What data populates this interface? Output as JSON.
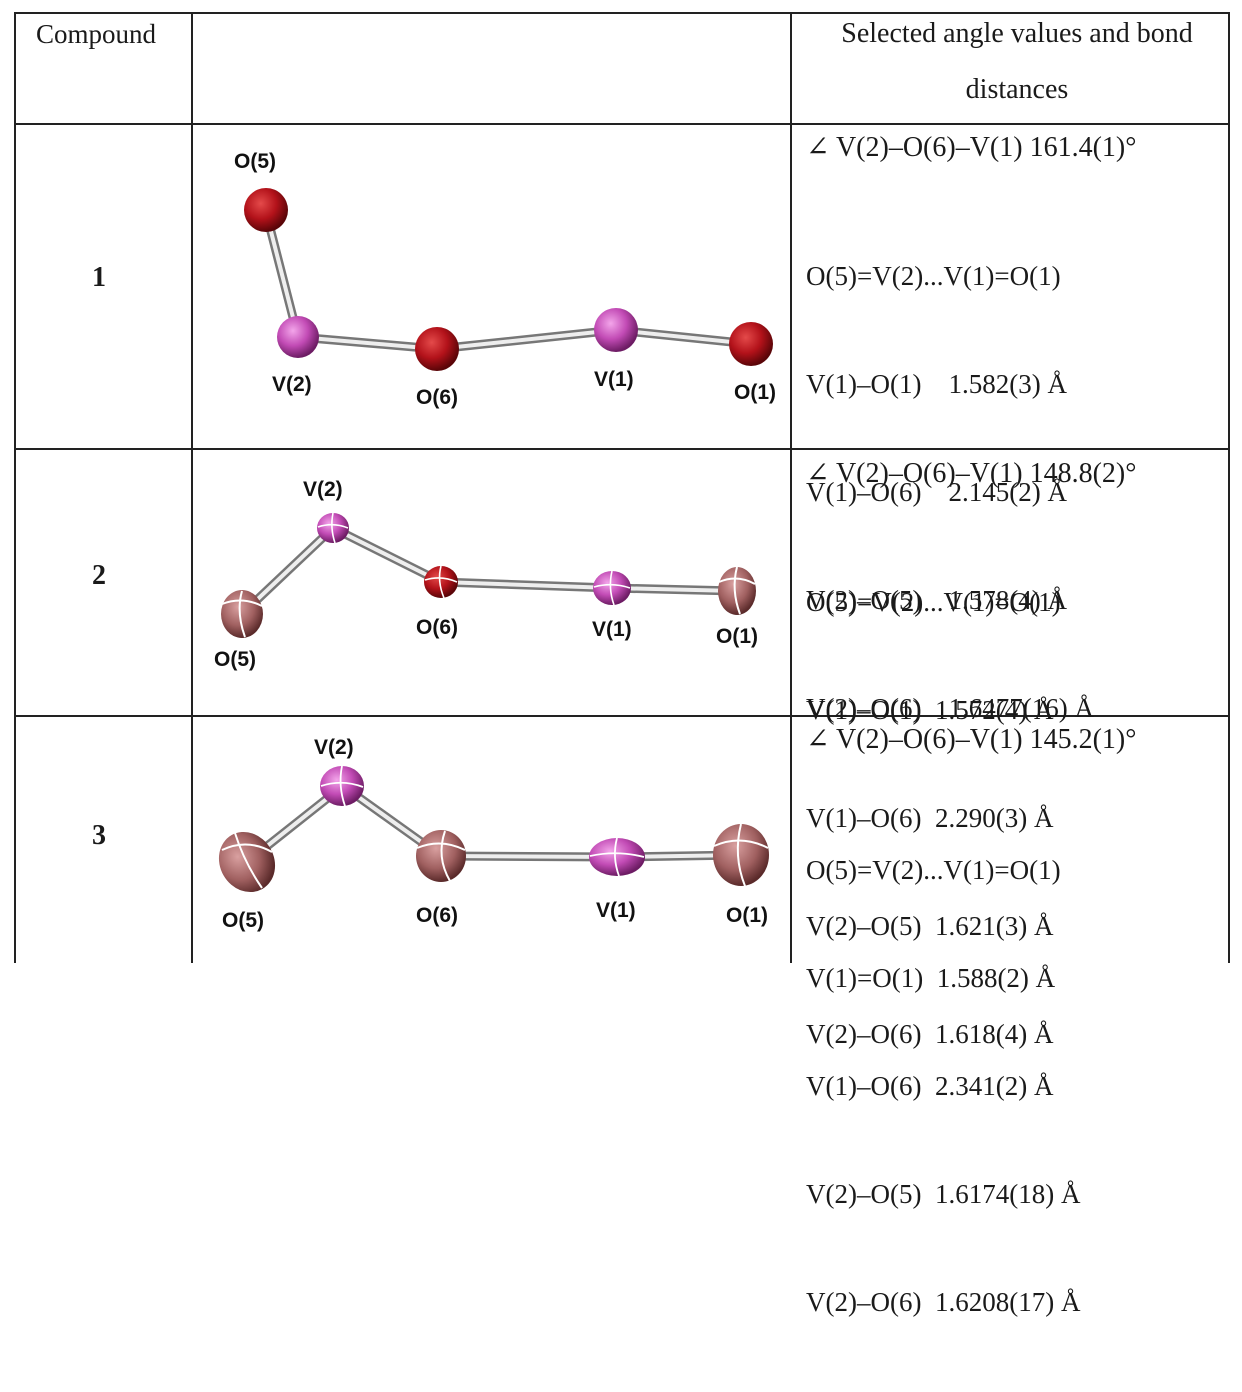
{
  "header": {
    "compound": "Compound",
    "structure": "",
    "data": "Selected angle values and bond distances"
  },
  "rows": [
    {
      "id": "1",
      "angle": "∠ V(2)–O(6)–V(1) 161.4(1)°",
      "bonds": [
        "O(5)=V(2)...V(1)=O(1)",
        "V(1)–O(1)    1.582(3) Å",
        "V(1)–O(6)    2.145(2) Å",
        "V(2)–O(5)    1.578(4) Å",
        "V(2)–O(6)    1.6477(16) Å"
      ],
      "labels": {
        "O5": "O(5)",
        "V2": "V(2)",
        "O6": "O(6)",
        "V1": "V(1)",
        "O1": "O(1)"
      }
    },
    {
      "id": "2",
      "angle": "∠ V(2)–O(6)–V(1) 148.8(2)°",
      "bonds": [
        "O(5)=V(2)...V(1)=O(1)",
        "V(1)–O(1)  1.572(4) Å",
        "V(1)–O(6)  2.290(3) Å",
        "V(2)–O(5)  1.621(3) Å",
        "V(2)–O(6)  1.618(4) Å"
      ],
      "labels": {
        "O5": "O(5)",
        "V2": "V(2)",
        "O6": "O(6)",
        "V1": "V(1)",
        "O1": "O(1)"
      }
    },
    {
      "id": "3",
      "angle": "∠ V(2)–O(6)–V(1) 145.2(1)°",
      "bonds": [
        "O(5)=V(2)...V(1)=O(1)",
        "V(1)=O(1)  1.588(2) Å",
        "V(1)–O(6)  2.341(2) Å",
        "V(2)–O(5)  1.6174(18) Å",
        "V(2)–O(6)  1.6208(17) Å"
      ],
      "labels": {
        "O5": "O(5)",
        "V2": "V(2)",
        "O6": "O(6)",
        "V1": "V(1)",
        "O1": "O(1)"
      }
    }
  ],
  "colors": {
    "vanadium": "#c24bb5",
    "oxygen_red": "#b3121a",
    "oxygen_brown": "#a06060",
    "bond": "#d9d9d9"
  }
}
